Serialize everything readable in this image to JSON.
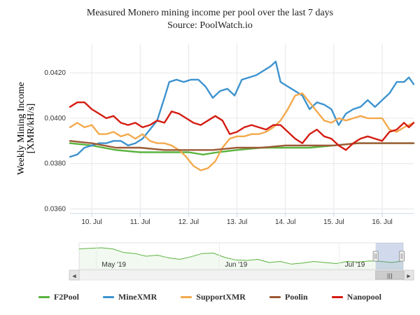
{
  "chart_data": {
    "type": "line",
    "title": "Measured Monero mining income per pool over the last 7 days",
    "subtitle": "Source: PoolWatch.io",
    "ylabel": "Weekly Mining Income [XMR/kH/s]",
    "ylabel_lines": [
      "Weekly Mining Income",
      "[XMR/kH/s]"
    ],
    "ylim": [
      0.0358,
      0.0433
    ],
    "y_ticks": [
      "0.0360",
      "0.0380",
      "0.0400",
      "0.0420"
    ],
    "y_tick_values": [
      0.036,
      0.038,
      0.04,
      0.042
    ],
    "xlim": [
      9.55,
      16.65
    ],
    "x_ticks": [
      "10. Jul",
      "11. Jul",
      "12. Jul",
      "13. Jul",
      "14. Jul",
      "15. Jul",
      "16. Jul"
    ],
    "x_tick_values": [
      10,
      11,
      12,
      13,
      14,
      15,
      16
    ],
    "grid": true,
    "legend_position": "bottom",
    "series": [
      {
        "name": "F2Pool",
        "color": "#5ab33e",
        "x": [
          9.55,
          10.0,
          10.5,
          11.0,
          11.5,
          12.0,
          12.3,
          12.6,
          13.0,
          13.5,
          14.0,
          14.5,
          15.0,
          15.5,
          16.0,
          16.65
        ],
        "y": [
          0.0389,
          0.0388,
          0.0386,
          0.0385,
          0.0385,
          0.0385,
          0.0384,
          0.0385,
          0.0386,
          0.0387,
          0.0387,
          0.0387,
          0.0388,
          0.0389,
          0.0389,
          0.0389
        ]
      },
      {
        "name": "MineXMR",
        "color": "#3d93cf",
        "x": [
          9.55,
          9.7,
          9.85,
          10.0,
          10.15,
          10.3,
          10.45,
          10.6,
          10.75,
          10.9,
          11.05,
          11.2,
          11.35,
          11.5,
          11.6,
          11.75,
          11.9,
          12.05,
          12.2,
          12.35,
          12.5,
          12.65,
          12.8,
          12.95,
          13.1,
          13.25,
          13.4,
          13.55,
          13.7,
          13.8,
          13.9,
          14.05,
          14.2,
          14.35,
          14.5,
          14.65,
          14.8,
          14.95,
          15.1,
          15.25,
          15.4,
          15.55,
          15.7,
          15.85,
          16.0,
          16.15,
          16.3,
          16.45,
          16.55,
          16.65
        ],
        "y": [
          0.0383,
          0.0384,
          0.0387,
          0.0388,
          0.0389,
          0.0389,
          0.039,
          0.039,
          0.0388,
          0.0389,
          0.0391,
          0.0395,
          0.0399,
          0.0409,
          0.0416,
          0.0417,
          0.0416,
          0.0417,
          0.0417,
          0.0414,
          0.0409,
          0.0412,
          0.0413,
          0.041,
          0.0417,
          0.0418,
          0.0419,
          0.0421,
          0.0423,
          0.0425,
          0.0416,
          0.0414,
          0.0412,
          0.041,
          0.0404,
          0.0407,
          0.0406,
          0.0404,
          0.0397,
          0.0402,
          0.0404,
          0.0405,
          0.0408,
          0.0405,
          0.0408,
          0.0411,
          0.0416,
          0.0416,
          0.0418,
          0.0415
        ]
      },
      {
        "name": "SupportXMR",
        "color": "#f4a94c",
        "x": [
          9.55,
          9.7,
          9.85,
          10.0,
          10.15,
          10.3,
          10.45,
          10.6,
          10.75,
          10.9,
          11.05,
          11.2,
          11.35,
          11.5,
          11.65,
          11.8,
          11.95,
          12.1,
          12.25,
          12.4,
          12.55,
          12.7,
          12.85,
          13.0,
          13.15,
          13.3,
          13.45,
          13.6,
          13.75,
          13.9,
          14.05,
          14.2,
          14.35,
          14.5,
          14.65,
          14.8,
          14.95,
          15.1,
          15.25,
          15.4,
          15.55,
          15.7,
          15.85,
          16.0,
          16.15,
          16.3,
          16.45,
          16.55,
          16.65
        ],
        "y": [
          0.0396,
          0.0398,
          0.0396,
          0.0397,
          0.0393,
          0.0393,
          0.0394,
          0.0392,
          0.0393,
          0.0391,
          0.0393,
          0.039,
          0.0389,
          0.0389,
          0.0388,
          0.0386,
          0.0383,
          0.0379,
          0.0377,
          0.0378,
          0.0381,
          0.0387,
          0.0391,
          0.0392,
          0.0392,
          0.0393,
          0.0393,
          0.0394,
          0.0396,
          0.0399,
          0.0404,
          0.041,
          0.0411,
          0.0407,
          0.0403,
          0.0399,
          0.0398,
          0.04,
          0.0399,
          0.04,
          0.0401,
          0.04,
          0.04,
          0.04,
          0.0395,
          0.0394,
          0.0396,
          0.0397,
          0.0398
        ]
      },
      {
        "name": "Poolin",
        "color": "#9c5a34",
        "x": [
          9.55,
          10.0,
          10.5,
          11.0,
          11.5,
          12.0,
          12.5,
          13.0,
          13.5,
          14.0,
          14.5,
          15.0,
          15.5,
          16.0,
          16.65
        ],
        "y": [
          0.039,
          0.0389,
          0.0387,
          0.0387,
          0.0386,
          0.0386,
          0.0386,
          0.0387,
          0.0387,
          0.0388,
          0.0388,
          0.0388,
          0.0389,
          0.0389,
          0.0389
        ]
      },
      {
        "name": "Nanopool",
        "color": "#d41c12",
        "x": [
          9.55,
          9.7,
          9.85,
          10.0,
          10.15,
          10.3,
          10.45,
          10.6,
          10.75,
          10.9,
          11.05,
          11.2,
          11.35,
          11.5,
          11.65,
          11.8,
          11.95,
          12.1,
          12.25,
          12.4,
          12.55,
          12.7,
          12.85,
          13.0,
          13.15,
          13.3,
          13.45,
          13.6,
          13.75,
          13.9,
          14.05,
          14.2,
          14.35,
          14.5,
          14.65,
          14.8,
          14.95,
          15.1,
          15.25,
          15.4,
          15.55,
          15.7,
          15.85,
          16.0,
          16.15,
          16.3,
          16.45,
          16.55,
          16.65
        ],
        "y": [
          0.0405,
          0.0407,
          0.0407,
          0.0404,
          0.0402,
          0.04,
          0.0401,
          0.0398,
          0.0397,
          0.0398,
          0.0396,
          0.0397,
          0.0399,
          0.0398,
          0.0403,
          0.0402,
          0.04,
          0.0398,
          0.0397,
          0.0399,
          0.0401,
          0.0399,
          0.0393,
          0.0394,
          0.0396,
          0.0397,
          0.0396,
          0.0395,
          0.0397,
          0.0397,
          0.0394,
          0.0391,
          0.0389,
          0.0393,
          0.0395,
          0.0392,
          0.0391,
          0.0388,
          0.0386,
          0.0389,
          0.0391,
          0.0392,
          0.0391,
          0.039,
          0.0394,
          0.0395,
          0.0398,
          0.0396,
          0.0398
        ]
      }
    ]
  },
  "navigator": {
    "labels": [
      "May '19",
      "Jun '19",
      "Jul '19"
    ],
    "label_fractions": [
      0.07,
      0.45,
      0.82
    ],
    "selection_start_fraction": 0.915,
    "overview_series": {
      "color": "#5ab33e",
      "y": [
        0.0412,
        0.0413,
        0.0414,
        0.0412,
        0.0405,
        0.0403,
        0.0398,
        0.04,
        0.0395,
        0.0392,
        0.0397,
        0.0403,
        0.0404,
        0.0396,
        0.0391,
        0.039,
        0.0392,
        0.0386,
        0.0388,
        0.0383,
        0.0385,
        0.0388,
        0.0386,
        0.0384,
        0.0388,
        0.0387,
        0.0389,
        0.0388,
        0.0386,
        0.0389
      ]
    },
    "scroll_left": "◀",
    "scroll_right": "▶",
    "handle_glyph": "|||"
  }
}
